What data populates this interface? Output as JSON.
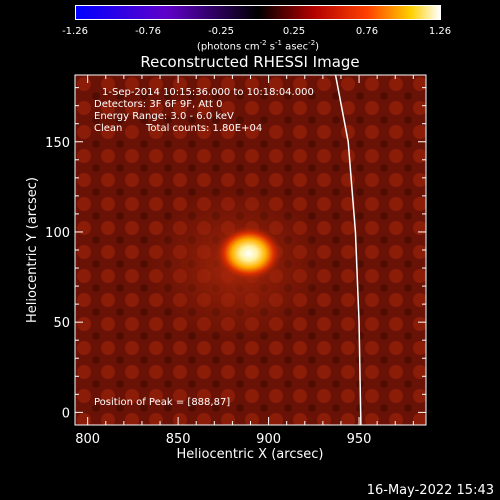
{
  "colorbar": {
    "ticks": [
      "-1.26",
      "-0.76",
      "-0.25",
      "0.25",
      "0.76",
      "1.26"
    ],
    "label_prefix": "(photons cm",
    "label_exp1": "-2",
    "label_mid1": " s",
    "label_exp2": "-1",
    "label_mid2": " asec",
    "label_exp3": "-2",
    "label_suffix": ")"
  },
  "info": {
    "time_range": "1-Sep-2014 10:15:36.000 to 10:18:04.000",
    "detectors": "Detectors: 3F 6F 9F, Att 0",
    "energy": "Energy Range: 3.0 - 6.0 keV",
    "algorithm": "Clean",
    "counts": "Total counts: 1.80E+04",
    "peak": "Position of Peak = [888,87]"
  },
  "timestamp": "16-May-2022 15:43",
  "chart_data": {
    "type": "heatmap",
    "title": "Reconstructed RHESSI Image",
    "xlabel": "Heliocentric X (arcsec)",
    "ylabel": "Heliocentric Y (arcsec)",
    "xlim": [
      793,
      987
    ],
    "ylim": [
      -7,
      187
    ],
    "x_ticks": [
      "800",
      "850",
      "900",
      "950"
    ],
    "y_ticks": [
      "0",
      "50",
      "100",
      "150"
    ],
    "zlim": [
      -1.26,
      1.26
    ],
    "colormap": "rainbow-like: blue-purple-red-yellow-white",
    "peak": [
      888,
      87
    ],
    "limb_points": [
      [
        937,
        187
      ],
      [
        944,
        150
      ],
      [
        948,
        100
      ],
      [
        950,
        50
      ],
      [
        951,
        -7
      ]
    ]
  }
}
